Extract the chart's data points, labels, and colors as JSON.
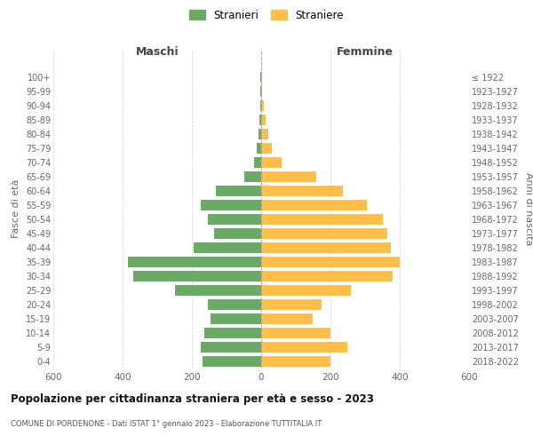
{
  "age_groups": [
    "0-4",
    "5-9",
    "10-14",
    "15-19",
    "20-24",
    "25-29",
    "30-34",
    "35-39",
    "40-44",
    "45-49",
    "50-54",
    "55-59",
    "60-64",
    "65-69",
    "70-74",
    "75-79",
    "80-84",
    "85-89",
    "90-94",
    "95-99",
    "100+"
  ],
  "birth_years": [
    "2018-2022",
    "2013-2017",
    "2008-2012",
    "2003-2007",
    "1998-2002",
    "1993-1997",
    "1988-1992",
    "1983-1987",
    "1978-1982",
    "1973-1977",
    "1968-1972",
    "1963-1967",
    "1958-1962",
    "1953-1957",
    "1948-1952",
    "1943-1947",
    "1938-1942",
    "1933-1937",
    "1928-1932",
    "1923-1927",
    "≤ 1922"
  ],
  "males": [
    170,
    175,
    165,
    145,
    155,
    250,
    370,
    385,
    195,
    135,
    155,
    175,
    130,
    50,
    20,
    12,
    8,
    5,
    3,
    2,
    2
  ],
  "females": [
    200,
    248,
    200,
    148,
    175,
    260,
    380,
    400,
    375,
    365,
    350,
    305,
    235,
    160,
    60,
    30,
    20,
    12,
    8,
    3,
    3
  ],
  "male_color": "#6aaa64",
  "female_color": "#ffbf47",
  "title": "Popolazione per cittadinanza straniera per età e sesso - 2023",
  "subtitle": "COMUNE DI PORDENONE - Dati ISTAT 1° gennaio 2023 - Elaborazione TUTTITALIA.IT",
  "left_label": "Maschi",
  "right_label": "Femmine",
  "ylabel_left": "Fasce di età",
  "ylabel_right": "Anni di nascita",
  "legend_male": "Stranieri",
  "legend_female": "Straniere",
  "xlim": 600,
  "background_color": "#ffffff",
  "grid_color": "#cccccc"
}
